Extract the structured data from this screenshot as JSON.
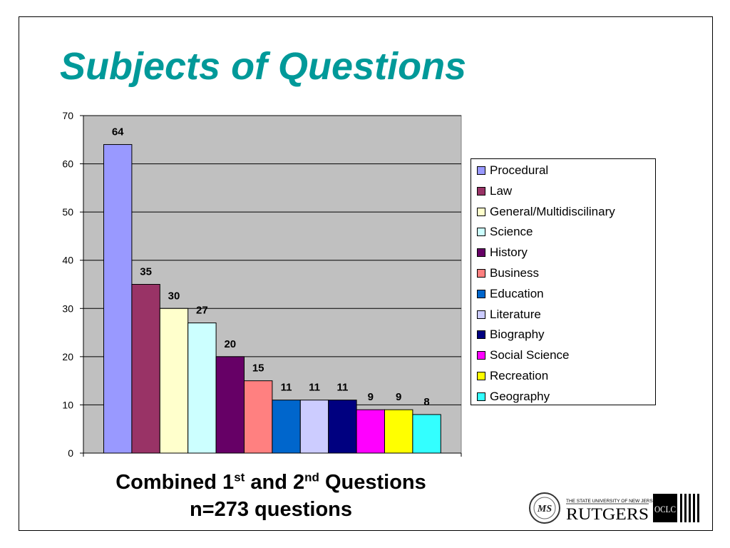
{
  "title": "Subjects of Questions",
  "caption": {
    "line1_a": "Combined 1",
    "line1_sup1": "st",
    "line1_b": " and 2",
    "line1_sup2": "nd",
    "line1_c": " Questions",
    "line2": "n=273 questions"
  },
  "logos": {
    "rutgers_small": "THE STATE UNIVERSITY OF NEW JERSEY",
    "rutgers": "RUTGERS",
    "oclc": "OCLC"
  },
  "colors": {
    "title": "#009999",
    "plot_background": "#c0c0c0"
  },
  "chart_data": {
    "type": "bar",
    "title": "",
    "xlabel": "",
    "ylabel": "",
    "ylim": [
      0,
      70
    ],
    "yticks": [
      "0",
      "10",
      "20",
      "30",
      "40",
      "50",
      "60",
      "70"
    ],
    "grid": true,
    "legend_position": "right",
    "categories": [
      "Procedural",
      "Law",
      "General/Multidiscilinary",
      "Science",
      "History",
      "Business",
      "Education",
      "Literature",
      "Biography",
      "Social Science",
      "Recreation",
      "Geography"
    ],
    "values": [
      64,
      35,
      30,
      27,
      20,
      15,
      11,
      11,
      11,
      9,
      9,
      8
    ],
    "colors": [
      "#9999ff",
      "#993366",
      "#ffffcc",
      "#ccffff",
      "#660066",
      "#ff8080",
      "#0066cc",
      "#ccccff",
      "#000080",
      "#ff00ff",
      "#ffff00",
      "#33ffff"
    ]
  }
}
